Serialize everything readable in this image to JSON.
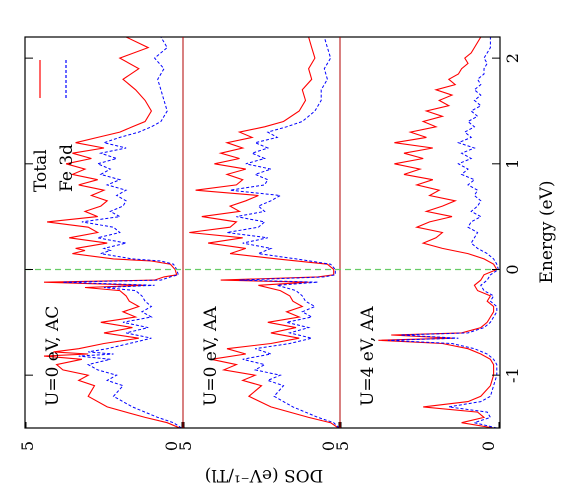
{
  "chart_data": {
    "type": "line",
    "layout_note": "Three stacked DOS panels rendered rotated by 90 degrees (energy on the vertical page axis).",
    "xlabel": "Energy (eV)",
    "ylabel": "DOS (eV⁻¹/Tl)",
    "xlim": [
      -1.5,
      2.2
    ],
    "ylim": [
      0,
      5
    ],
    "x_ticks": [
      "-1",
      "0",
      "1",
      "2"
    ],
    "y_ticks": [
      "0",
      "5"
    ],
    "fermi_level": 0,
    "colors": {
      "total": "#ff0000",
      "fe3d": "#0000ff",
      "fermi": "#66cc66",
      "axis": "#000000"
    },
    "legend": {
      "placement": "top-right",
      "entries": [
        {
          "label": "Total",
          "color": "#ff0000",
          "style": "solid"
        },
        {
          "label": "Fe 3d",
          "color": "#0000ff",
          "style": "dashed"
        }
      ]
    },
    "panels": [
      {
        "label": "U=0 eV, AC",
        "series": [
          {
            "name": "Total",
            "x": [
              -1.5,
              -1.45,
              -1.4,
              -1.3,
              -1.2,
              -1.1,
              -1.05,
              -1.0,
              -0.95,
              -0.9,
              -0.85,
              -0.82,
              -0.8,
              -0.78,
              -0.75,
              -0.7,
              -0.65,
              -0.6,
              -0.55,
              -0.5,
              -0.45,
              -0.4,
              -0.35,
              -0.3,
              -0.25,
              -0.2,
              -0.17,
              -0.15,
              -0.12,
              -0.1,
              -0.07,
              -0.05,
              0.0,
              0.05,
              0.08,
              0.1,
              0.15,
              0.18,
              0.2,
              0.25,
              0.3,
              0.35,
              0.4,
              0.45,
              0.5,
              0.55,
              0.6,
              0.65,
              0.7,
              0.75,
              0.8,
              0.85,
              0.9,
              0.95,
              1.0,
              1.05,
              1.1,
              1.15,
              1.2,
              1.25,
              1.3,
              1.35,
              1.4,
              1.5,
              1.6,
              1.7,
              1.8,
              1.9,
              2.0,
              2.1,
              2.2
            ],
            "y": [
              0.1,
              0.5,
              1.2,
              2.4,
              3.0,
              2.8,
              3.3,
              3.0,
              3.8,
              4.0,
              3.2,
              4.4,
              3.0,
              4.1,
              3.3,
              2.5,
              1.4,
              2.5,
              1.6,
              2.6,
              1.5,
              1.9,
              1.4,
              1.7,
              1.8,
              2.0,
              3.1,
              1.2,
              4.4,
              0.9,
              0.6,
              0.2,
              0.25,
              0.4,
              1.0,
              2.2,
              3.5,
              3.1,
              3.4,
              2.4,
              3.6,
              2.7,
              3.0,
              4.3,
              2.7,
              3.1,
              2.6,
              2.4,
              2.9,
              2.5,
              3.3,
              2.7,
              3.5,
              3.1,
              3.7,
              2.9,
              3.5,
              2.5,
              3.4,
              2.7,
              2.0,
              1.6,
              1.2,
              1.0,
              1.2,
              1.5,
              1.9,
              1.4,
              2.0,
              1.1,
              1.8
            ]
          },
          {
            "name": "Fe 3d",
            "x": [
              -1.5,
              -1.45,
              -1.4,
              -1.3,
              -1.2,
              -1.1,
              -1.05,
              -1.0,
              -0.95,
              -0.9,
              -0.85,
              -0.82,
              -0.8,
              -0.78,
              -0.75,
              -0.7,
              -0.65,
              -0.6,
              -0.55,
              -0.5,
              -0.45,
              -0.4,
              -0.35,
              -0.3,
              -0.25,
              -0.2,
              -0.17,
              -0.15,
              -0.12,
              -0.1,
              -0.07,
              -0.05,
              0.0,
              0.05,
              0.08,
              0.1,
              0.15,
              0.18,
              0.2,
              0.25,
              0.3,
              0.35,
              0.4,
              0.45,
              0.5,
              0.55,
              0.6,
              0.65,
              0.7,
              0.75,
              0.8,
              0.85,
              0.9,
              0.95,
              1.0,
              1.05,
              1.1,
              1.15,
              1.2,
              1.25,
              1.3,
              1.35,
              1.4,
              1.5,
              1.6,
              1.7,
              1.8,
              1.9,
              2.0,
              2.1,
              2.2
            ],
            "y": [
              0.05,
              0.3,
              0.8,
              1.6,
              2.2,
              1.9,
              2.4,
              2.1,
              2.7,
              3.0,
              2.3,
              3.3,
              2.2,
              3.0,
              2.4,
              1.7,
              1.0,
              1.8,
              1.1,
              1.9,
              1.0,
              1.3,
              1.0,
              1.2,
              1.3,
              1.5,
              2.5,
              0.9,
              3.8,
              0.7,
              0.4,
              0.15,
              0.2,
              0.3,
              0.7,
              1.6,
              2.6,
              2.3,
              2.5,
              1.8,
              2.7,
              2.0,
              2.2,
              3.2,
              2.0,
              2.3,
              1.9,
              1.8,
              2.1,
              1.8,
              2.4,
              2.0,
              2.6,
              2.3,
              2.7,
              2.1,
              2.6,
              1.8,
              2.5,
              2.0,
              1.4,
              1.0,
              0.7,
              0.5,
              0.6,
              0.7,
              0.8,
              0.6,
              0.9,
              0.5,
              0.7
            ]
          }
        ]
      },
      {
        "label": "U=0 eV, AA",
        "series": [
          {
            "name": "Total",
            "x": [
              -1.5,
              -1.45,
              -1.4,
              -1.3,
              -1.2,
              -1.1,
              -1.05,
              -1.0,
              -0.95,
              -0.9,
              -0.85,
              -0.8,
              -0.75,
              -0.7,
              -0.65,
              -0.6,
              -0.55,
              -0.5,
              -0.45,
              -0.4,
              -0.35,
              -0.3,
              -0.25,
              -0.2,
              -0.15,
              -0.12,
              -0.1,
              -0.07,
              -0.05,
              0.0,
              0.05,
              0.1,
              0.15,
              0.2,
              0.25,
              0.3,
              0.35,
              0.4,
              0.45,
              0.5,
              0.55,
              0.6,
              0.65,
              0.7,
              0.75,
              0.8,
              0.85,
              0.9,
              0.95,
              1.0,
              1.05,
              1.1,
              1.15,
              1.2,
              1.25,
              1.3,
              1.35,
              1.4,
              1.5,
              1.6,
              1.7,
              1.8,
              1.9,
              2.0,
              2.1,
              2.2
            ],
            "y": [
              0.05,
              0.3,
              1.0,
              2.2,
              2.9,
              2.5,
              3.1,
              2.7,
              3.7,
              3.3,
              4.1,
              3.0,
              3.6,
              2.2,
              1.3,
              2.2,
              1.4,
              2.3,
              1.3,
              1.7,
              1.2,
              1.5,
              1.6,
              1.9,
              2.6,
              1.0,
              3.8,
              0.7,
              0.2,
              0.2,
              0.4,
              2.0,
              3.5,
              3.0,
              4.2,
              3.1,
              4.8,
              3.5,
              3.3,
              4.4,
              3.2,
              3.5,
              3.0,
              2.6,
              4.6,
              3.3,
              3.1,
              3.6,
              3.0,
              4.0,
              3.2,
              3.8,
              3.1,
              3.6,
              2.8,
              3.2,
              2.4,
              1.8,
              1.3,
              1.1,
              1.2,
              0.9,
              1.0,
              0.8,
              0.9,
              1.0
            ]
          },
          {
            "name": "Fe 3d",
            "x": [
              -1.5,
              -1.45,
              -1.4,
              -1.3,
              -1.2,
              -1.1,
              -1.05,
              -1.0,
              -0.95,
              -0.9,
              -0.85,
              -0.8,
              -0.75,
              -0.7,
              -0.65,
              -0.6,
              -0.55,
              -0.5,
              -0.45,
              -0.4,
              -0.35,
              -0.3,
              -0.25,
              -0.2,
              -0.15,
              -0.12,
              -0.1,
              -0.07,
              -0.05,
              0.0,
              0.05,
              0.1,
              0.15,
              0.2,
              0.25,
              0.3,
              0.35,
              0.4,
              0.45,
              0.5,
              0.55,
              0.6,
              0.65,
              0.7,
              0.75,
              0.8,
              0.85,
              0.9,
              0.95,
              1.0,
              1.05,
              1.1,
              1.15,
              1.2,
              1.25,
              1.3,
              1.35,
              1.4,
              1.5,
              1.6,
              1.7,
              1.8,
              1.9,
              2.0,
              2.1,
              2.2
            ],
            "y": [
              0.03,
              0.2,
              0.7,
              1.5,
              2.1,
              1.8,
              2.3,
              1.9,
              2.7,
              2.4,
              3.1,
              2.2,
              2.7,
              1.6,
              0.9,
              1.6,
              1.0,
              1.7,
              0.9,
              1.2,
              0.8,
              1.1,
              1.2,
              1.4,
              2.0,
              0.7,
              3.2,
              0.5,
              0.15,
              0.15,
              0.3,
              1.4,
              2.6,
              2.2,
              3.1,
              2.3,
              3.6,
              2.6,
              2.4,
              3.3,
              2.4,
              2.6,
              2.2,
              1.9,
              3.5,
              2.4,
              2.3,
              2.7,
              2.2,
              3.0,
              2.4,
              2.8,
              2.3,
              2.7,
              2.0,
              2.3,
              1.7,
              1.2,
              0.8,
              0.6,
              0.6,
              0.4,
              0.5,
              0.3,
              0.4,
              0.5
            ]
          }
        ]
      },
      {
        "label": "U=4 eV, AA",
        "series": [
          {
            "name": "Total",
            "x": [
              -1.5,
              -1.45,
              -1.4,
              -1.35,
              -1.3,
              -1.25,
              -1.2,
              -1.1,
              -1.0,
              -0.9,
              -0.85,
              -0.8,
              -0.75,
              -0.7,
              -0.67,
              -0.65,
              -0.62,
              -0.6,
              -0.55,
              -0.5,
              -0.45,
              -0.4,
              -0.35,
              -0.3,
              -0.25,
              -0.2,
              -0.15,
              -0.1,
              -0.05,
              0.0,
              0.05,
              0.1,
              0.15,
              0.2,
              0.25,
              0.3,
              0.35,
              0.4,
              0.45,
              0.5,
              0.55,
              0.6,
              0.65,
              0.7,
              0.75,
              0.8,
              0.85,
              0.9,
              0.95,
              1.0,
              1.05,
              1.1,
              1.15,
              1.2,
              1.25,
              1.3,
              1.35,
              1.4,
              1.45,
              1.5,
              1.55,
              1.6,
              1.65,
              1.7,
              1.75,
              1.8,
              1.85,
              1.9,
              1.95,
              2.0,
              2.05,
              2.1,
              2.2
            ],
            "y": [
              0.2,
              1.2,
              0.5,
              0.7,
              2.4,
              1.0,
              0.6,
              0.3,
              0.2,
              0.2,
              0.3,
              0.6,
              1.0,
              1.8,
              3.8,
              1.5,
              3.4,
              1.2,
              0.6,
              0.4,
              0.3,
              0.2,
              0.2,
              0.4,
              0.3,
              0.7,
              0.8,
              0.6,
              0.5,
              0.1,
              0.2,
              0.5,
              1.0,
              1.8,
              2.4,
              2.0,
              1.8,
              2.6,
              2.2,
              1.5,
              2.3,
              1.8,
              1.4,
              2.2,
              1.9,
              2.6,
              2.1,
              3.0,
              2.5,
              3.3,
              2.4,
              3.0,
              2.1,
              3.3,
              2.3,
              2.8,
              2.0,
              2.4,
              1.8,
              2.3,
              1.6,
              1.9,
              1.5,
              2.0,
              1.4,
              1.6,
              1.3,
              1.2,
              1.0,
              1.1,
              0.9,
              0.8,
              0.6
            ]
          },
          {
            "name": "Fe 3d",
            "x": [
              -1.5,
              -1.45,
              -1.4,
              -1.35,
              -1.3,
              -1.25,
              -1.2,
              -1.1,
              -1.0,
              -0.9,
              -0.85,
              -0.8,
              -0.75,
              -0.7,
              -0.67,
              -0.65,
              -0.62,
              -0.6,
              -0.55,
              -0.5,
              -0.45,
              -0.4,
              -0.35,
              -0.3,
              -0.25,
              -0.2,
              -0.15,
              -0.1,
              -0.05,
              0.0,
              0.05,
              0.1,
              0.15,
              0.2,
              0.25,
              0.3,
              0.35,
              0.4,
              0.45,
              0.5,
              0.55,
              0.6,
              0.65,
              0.7,
              0.75,
              0.8,
              0.85,
              0.9,
              0.95,
              1.0,
              1.05,
              1.1,
              1.15,
              1.2,
              1.25,
              1.3,
              1.35,
              1.4,
              1.45,
              1.5,
              1.55,
              1.6,
              1.65,
              1.7,
              1.75,
              1.8,
              1.85,
              1.9,
              1.95,
              2.0,
              2.05,
              2.1,
              2.2
            ],
            "y": [
              0.1,
              0.8,
              0.3,
              0.4,
              1.6,
              0.6,
              0.3,
              0.2,
              0.1,
              0.1,
              0.2,
              0.4,
              0.8,
              1.5,
              3.5,
              1.3,
              3.1,
              1.0,
              0.5,
              0.3,
              0.2,
              0.1,
              0.1,
              0.3,
              0.2,
              0.5,
              0.6,
              0.4,
              0.3,
              0.05,
              0.1,
              0.2,
              0.4,
              0.7,
              0.9,
              0.8,
              0.7,
              1.0,
              0.9,
              0.6,
              0.9,
              0.7,
              0.6,
              0.8,
              0.7,
              1.0,
              0.8,
              1.2,
              1.0,
              1.3,
              0.9,
              1.2,
              0.8,
              1.3,
              0.9,
              1.1,
              0.8,
              1.0,
              0.7,
              0.9,
              0.6,
              0.8,
              0.6,
              0.8,
              0.6,
              0.7,
              0.5,
              0.5,
              0.4,
              0.5,
              0.4,
              0.3,
              0.3
            ]
          }
        ]
      }
    ]
  }
}
